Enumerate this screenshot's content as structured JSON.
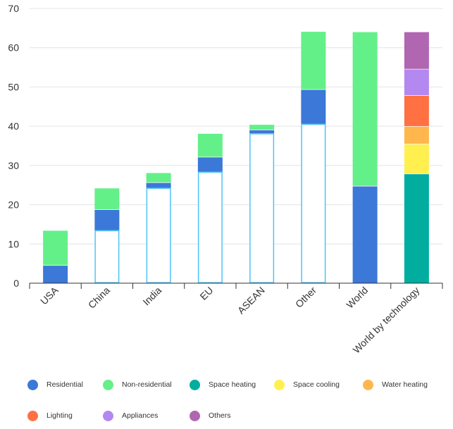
{
  "chart_data": {
    "type": "bar",
    "stacked": true,
    "title": "",
    "xlabel": "",
    "ylabel": "",
    "ylim": [
      0,
      70
    ],
    "yticks": [
      0,
      10,
      20,
      30,
      40,
      50,
      60,
      70
    ],
    "grid": true,
    "categories": [
      "USA",
      "China",
      "India",
      "EU",
      "ASEAN",
      "Other",
      "World",
      "World by technology"
    ],
    "waterfall_base": [
      0,
      13.5,
      24.3,
      28.4,
      38.2,
      40.6,
      0,
      0
    ],
    "base_color": "#ffffff",
    "base_stroke": "#4fc3f7",
    "series": [
      {
        "name": "Residential",
        "color": "#3b78d8",
        "values": [
          4.6,
          5.3,
          1.4,
          3.8,
          0.9,
          8.8,
          24.8,
          0
        ]
      },
      {
        "name": "Non-residential",
        "color": "#63f089",
        "values": [
          8.9,
          5.5,
          2.5,
          6.0,
          1.4,
          14.8,
          39.3,
          0
        ]
      },
      {
        "name": "Space heating",
        "color": "#00ad9f",
        "values": [
          0,
          0,
          0,
          0,
          0,
          0,
          0,
          27.9
        ]
      },
      {
        "name": "Space cooling",
        "color": "#fff04f",
        "values": [
          0,
          0,
          0,
          0,
          0,
          0,
          0,
          7.6
        ]
      },
      {
        "name": "Water heating",
        "color": "#ffb74d",
        "values": [
          0,
          0,
          0,
          0,
          0,
          0,
          0,
          4.5
        ]
      },
      {
        "name": "Lighting",
        "color": "#ff7043",
        "values": [
          0,
          0,
          0,
          0,
          0,
          0,
          0,
          7.9
        ]
      },
      {
        "name": "Appliances",
        "color": "#b388f0",
        "values": [
          0,
          0,
          0,
          0,
          0,
          0,
          0,
          6.7
        ]
      },
      {
        "name": "Others",
        "color": "#b066b0",
        "values": [
          0,
          0,
          0,
          0,
          0,
          0,
          0,
          9.5
        ]
      }
    ],
    "legend_position": "bottom"
  }
}
